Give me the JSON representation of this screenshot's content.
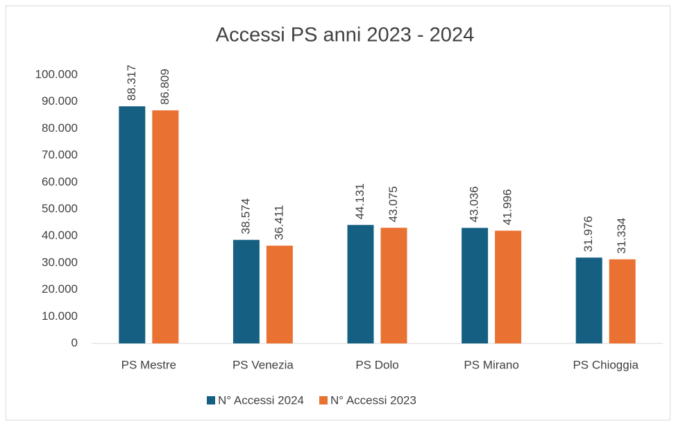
{
  "chart_data": {
    "type": "bar",
    "title": "Accessi PS anni 2023 - 2024",
    "categories": [
      "PS Mestre",
      "PS Venezia",
      "PS Dolo",
      "PS Mirano",
      "PS Chioggia"
    ],
    "series": [
      {
        "name": "N° Accessi 2024",
        "color": "#156082",
        "values": [
          88317,
          38574,
          44131,
          43036,
          31976
        ],
        "value_labels": [
          "88.317",
          "38.574",
          "44.131",
          "43.036",
          "31.976"
        ]
      },
      {
        "name": "N° Accessi 2023",
        "color": "#e97132",
        "values": [
          86809,
          36411,
          43075,
          41996,
          31334
        ],
        "value_labels": [
          "86.809",
          "36.411",
          "43.075",
          "41.996",
          "31.334"
        ]
      }
    ],
    "ylim": [
      0,
      100000
    ],
    "yticks": [
      0,
      {
        "value": 10000,
        "label": "10.000"
      },
      {
        "value": 20000,
        "label": "20.000"
      },
      {
        "value": 30000,
        "label": "30.000"
      },
      {
        "value": 40000,
        "label": "40.000"
      },
      {
        "value": 50000,
        "label": "50.000"
      },
      {
        "value": 60000,
        "label": "60.000"
      },
      {
        "value": 70000,
        "label": "70.000"
      },
      {
        "value": 80000,
        "label": "80.000"
      },
      {
        "value": 90000,
        "label": "90.000"
      },
      {
        "value": 100000,
        "label": "100.000"
      }
    ],
    "grid": false,
    "legend": "bottom"
  }
}
